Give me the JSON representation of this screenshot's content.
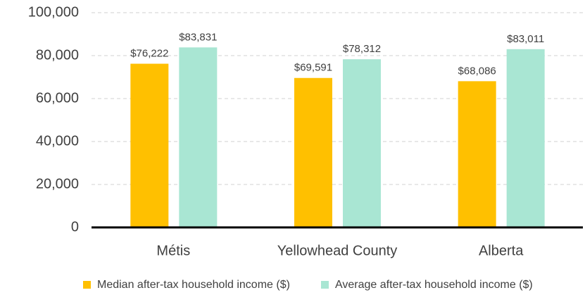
{
  "chart_data": {
    "type": "bar",
    "categories": [
      "Métis",
      "Yellowhead County",
      "Alberta"
    ],
    "series": [
      {
        "name": "Median after-tax household income ($)",
        "color": "#ffc000",
        "values": [
          76222,
          69591,
          68086
        ],
        "value_labels": [
          "$76,222",
          "$69,591",
          "$68,086"
        ]
      },
      {
        "name": "Average after-tax household income ($)",
        "color": "#a9e6d3",
        "values": [
          83831,
          78312,
          83011
        ],
        "value_labels": [
          "$83,831",
          "$78,312",
          "$83,011"
        ]
      }
    ],
    "ylim": [
      0,
      100000
    ],
    "yticks": [
      0,
      {
        "value": 20000,
        "label": "20,000"
      },
      {
        "value": 40000,
        "label": "40,000"
      },
      {
        "value": 60000,
        "label": "60,000"
      },
      {
        "value": 80000,
        "label": "80,000"
      },
      {
        "value": 100000,
        "label": "100,000"
      }
    ],
    "grid": true,
    "legend": "bottom"
  }
}
